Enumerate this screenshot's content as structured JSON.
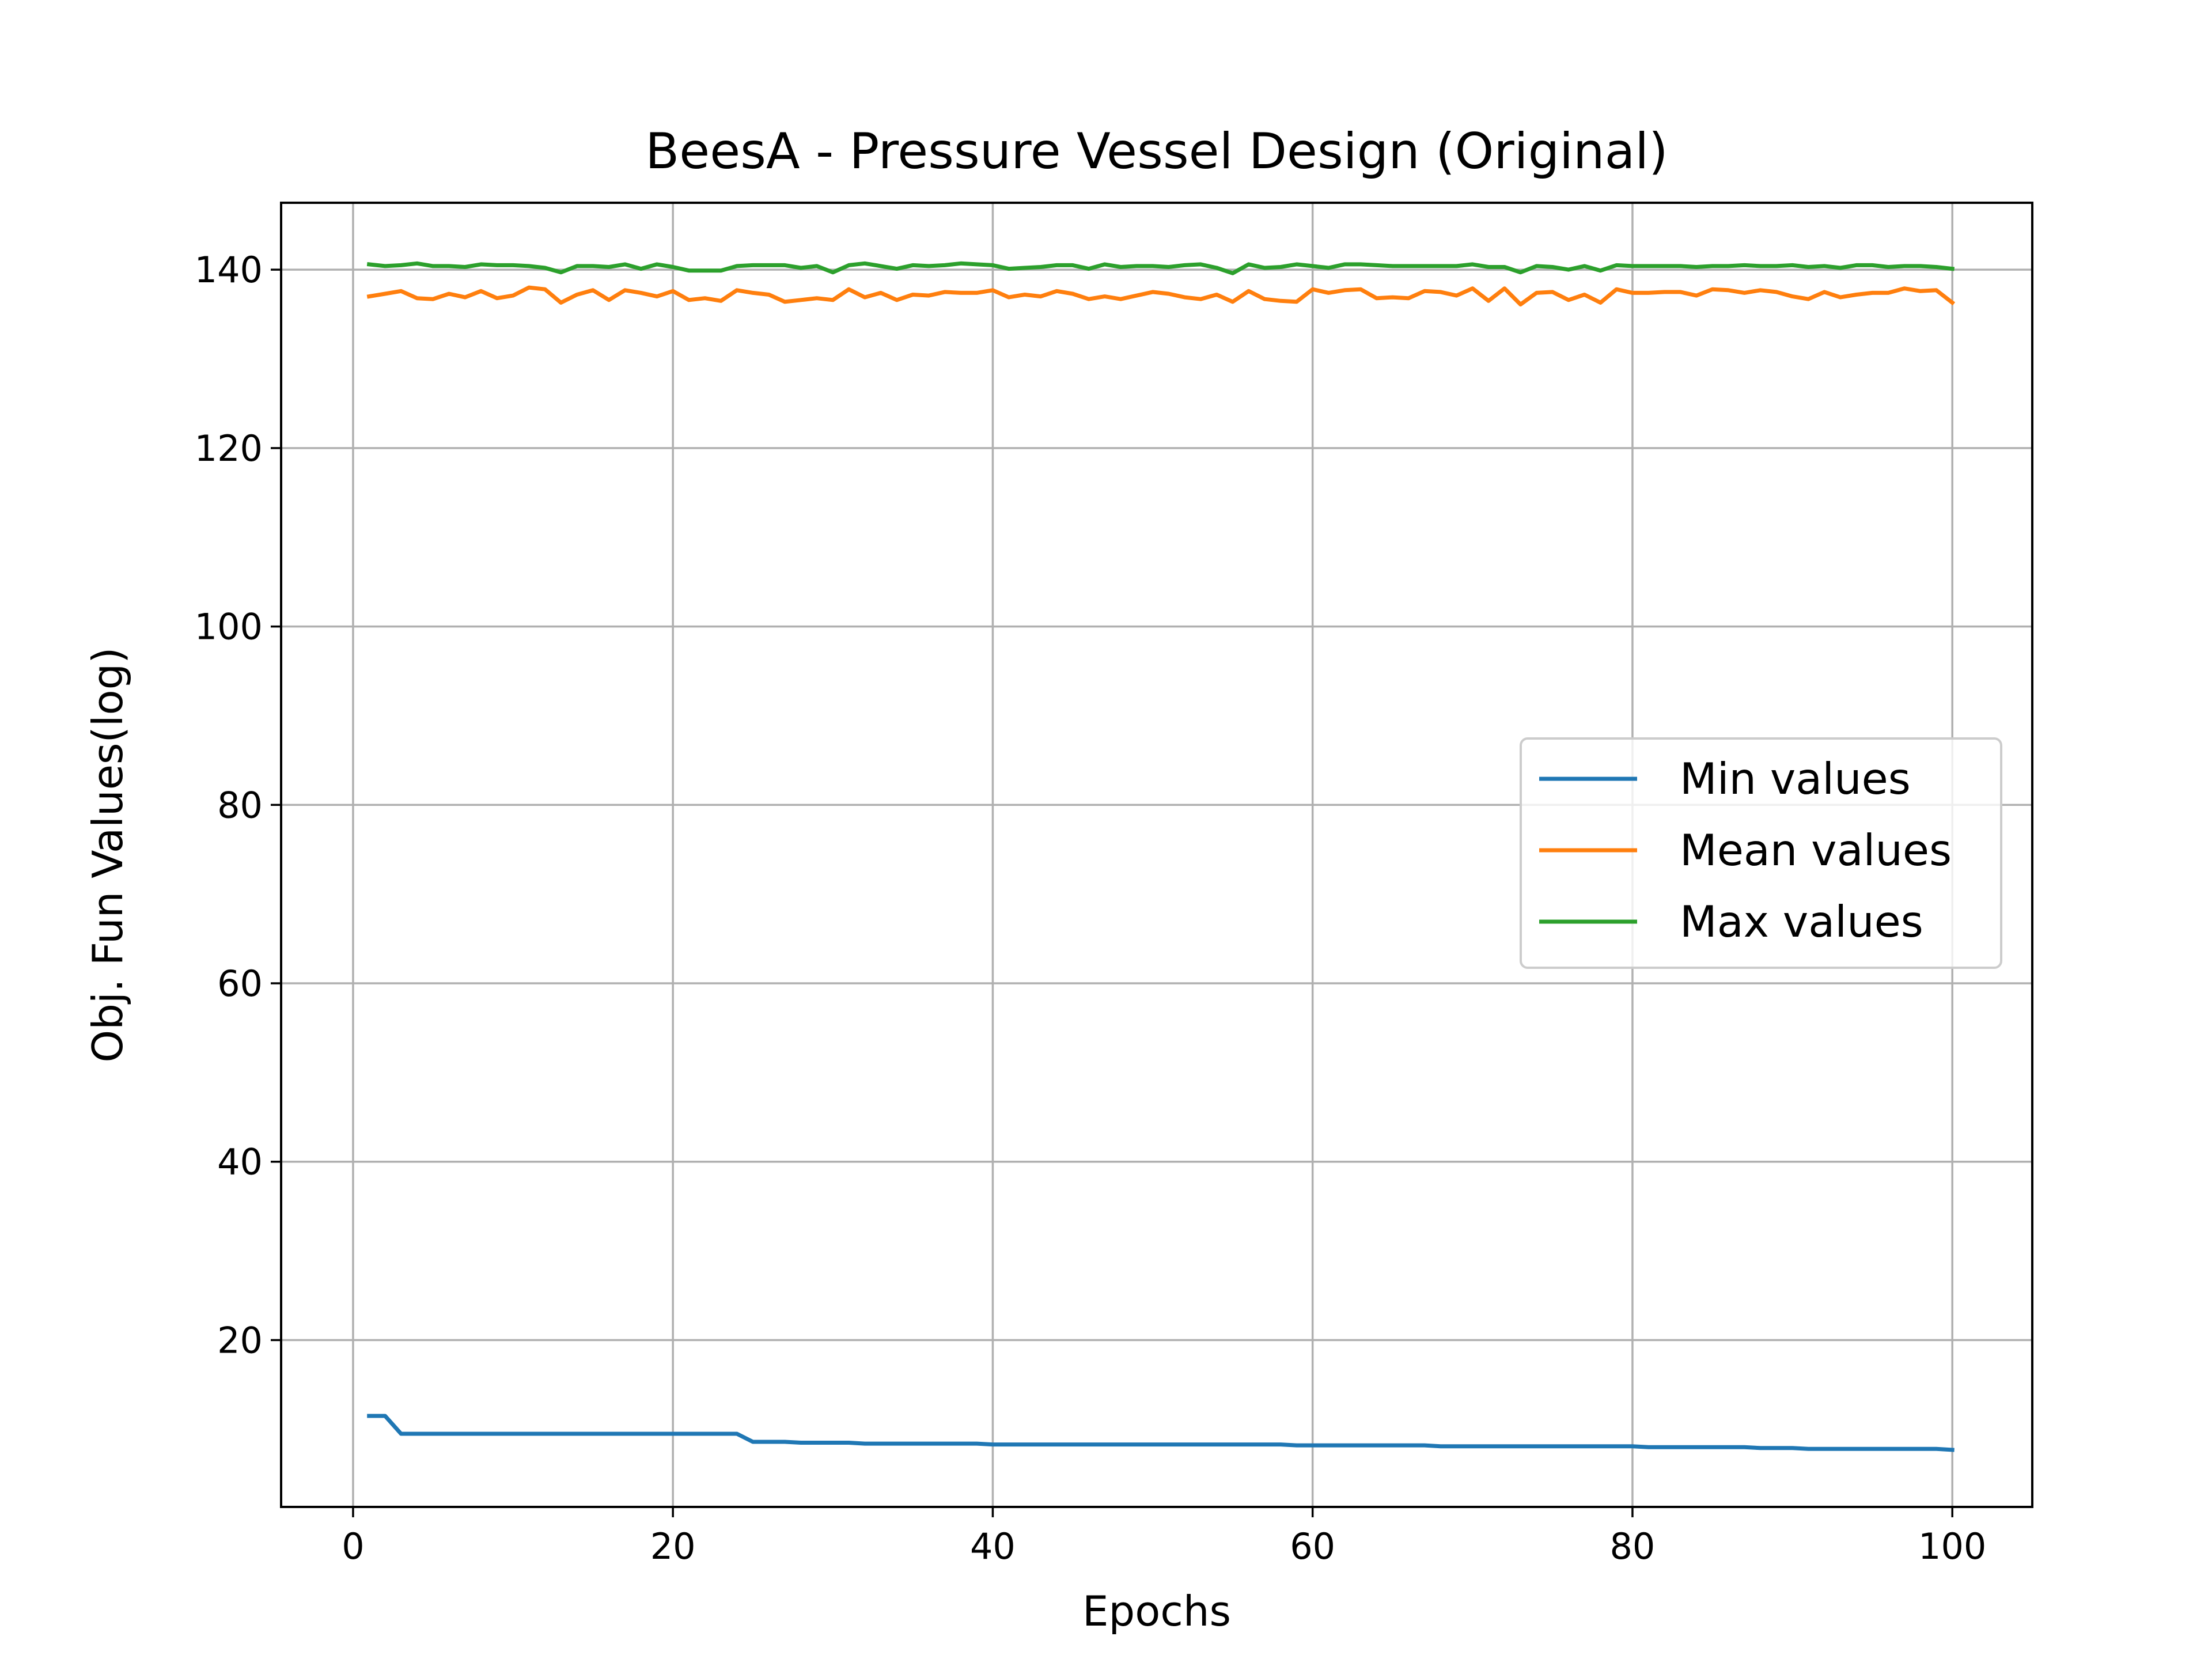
{
  "chart_data": {
    "type": "line",
    "title": "BeesA - Pressure Vessel Design (Original)",
    "xlabel": "Epochs",
    "ylabel": "Obj. Fun Values(log)",
    "xlim": [
      -4.5,
      105
    ],
    "ylim": [
      1.3,
      147.5
    ],
    "xticks": [
      0,
      20,
      40,
      60,
      80,
      100
    ],
    "yticks": [
      20,
      40,
      60,
      80,
      100,
      120,
      140
    ],
    "grid": true,
    "legend_position": "center-right",
    "x": [
      1,
      2,
      3,
      4,
      5,
      6,
      7,
      8,
      9,
      10,
      11,
      12,
      13,
      14,
      15,
      16,
      17,
      18,
      19,
      20,
      21,
      22,
      23,
      24,
      25,
      26,
      27,
      28,
      29,
      30,
      31,
      32,
      33,
      34,
      35,
      36,
      37,
      38,
      39,
      40,
      41,
      42,
      43,
      44,
      45,
      46,
      47,
      48,
      49,
      50,
      51,
      52,
      53,
      54,
      55,
      56,
      57,
      58,
      59,
      60,
      61,
      62,
      63,
      64,
      65,
      66,
      67,
      68,
      69,
      70,
      71,
      72,
      73,
      74,
      75,
      76,
      77,
      78,
      79,
      80,
      81,
      82,
      83,
      84,
      85,
      86,
      87,
      88,
      89,
      90,
      91,
      92,
      93,
      94,
      95,
      96,
      97,
      98,
      99,
      100
    ],
    "series": [
      {
        "name": "Min values",
        "color": "#1f77b4",
        "values": [
          11.5,
          11.5,
          9.5,
          9.5,
          9.5,
          9.5,
          9.5,
          9.5,
          9.5,
          9.5,
          9.5,
          9.5,
          9.5,
          9.5,
          9.5,
          9.5,
          9.5,
          9.5,
          9.5,
          9.5,
          9.5,
          9.5,
          9.5,
          9.5,
          8.6,
          8.6,
          8.6,
          8.5,
          8.5,
          8.5,
          8.5,
          8.4,
          8.4,
          8.4,
          8.4,
          8.4,
          8.4,
          8.4,
          8.4,
          8.3,
          8.3,
          8.3,
          8.3,
          8.3,
          8.3,
          8.3,
          8.3,
          8.3,
          8.3,
          8.3,
          8.3,
          8.3,
          8.3,
          8.3,
          8.3,
          8.3,
          8.3,
          8.3,
          8.2,
          8.2,
          8.2,
          8.2,
          8.2,
          8.2,
          8.2,
          8.2,
          8.2,
          8.1,
          8.1,
          8.1,
          8.1,
          8.1,
          8.1,
          8.1,
          8.1,
          8.1,
          8.1,
          8.1,
          8.1,
          8.1,
          8.0,
          8.0,
          8.0,
          8.0,
          8.0,
          8.0,
          8.0,
          7.9,
          7.9,
          7.9,
          7.8,
          7.8,
          7.8,
          7.8,
          7.8,
          7.8,
          7.8,
          7.8,
          7.8,
          7.7
        ]
      },
      {
        "name": "Mean values",
        "color": "#ff7f0e",
        "values": [
          137.0,
          137.3,
          137.6,
          136.8,
          136.7,
          137.3,
          136.9,
          137.6,
          136.8,
          137.1,
          138.0,
          137.8,
          136.3,
          137.2,
          137.7,
          136.6,
          137.7,
          137.4,
          137.0,
          137.6,
          136.6,
          136.8,
          136.5,
          137.7,
          137.4,
          137.2,
          136.4,
          136.6,
          136.8,
          136.6,
          137.8,
          136.9,
          137.4,
          136.6,
          137.2,
          137.1,
          137.5,
          137.4,
          137.4,
          137.7,
          136.9,
          137.2,
          137.0,
          137.6,
          137.3,
          136.7,
          137.0,
          136.7,
          137.1,
          137.5,
          137.3,
          136.9,
          136.7,
          137.2,
          136.4,
          137.6,
          136.7,
          136.5,
          136.4,
          137.8,
          137.4,
          137.7,
          137.8,
          136.8,
          136.9,
          136.8,
          137.6,
          137.5,
          137.1,
          137.9,
          136.5,
          137.9,
          136.1,
          137.4,
          137.5,
          136.6,
          137.2,
          136.3,
          137.8,
          137.4,
          137.4,
          137.5,
          137.5,
          137.1,
          137.8,
          137.7,
          137.4,
          137.7,
          137.5,
          137.0,
          136.7,
          137.5,
          136.9,
          137.2,
          137.4,
          137.4,
          137.9,
          137.6,
          137.7,
          136.3
        ]
      },
      {
        "name": "Max values",
        "color": "#2ca02c",
        "values": [
          140.6,
          140.4,
          140.5,
          140.7,
          140.4,
          140.4,
          140.3,
          140.6,
          140.5,
          140.5,
          140.4,
          140.2,
          139.7,
          140.4,
          140.4,
          140.3,
          140.6,
          140.1,
          140.6,
          140.3,
          139.9,
          139.9,
          139.9,
          140.4,
          140.5,
          140.5,
          140.5,
          140.2,
          140.4,
          139.7,
          140.5,
          140.7,
          140.4,
          140.1,
          140.5,
          140.4,
          140.5,
          140.7,
          140.6,
          140.5,
          140.1,
          140.2,
          140.3,
          140.5,
          140.5,
          140.1,
          140.6,
          140.3,
          140.4,
          140.4,
          140.3,
          140.5,
          140.6,
          140.2,
          139.6,
          140.6,
          140.2,
          140.3,
          140.6,
          140.4,
          140.2,
          140.6,
          140.6,
          140.5,
          140.4,
          140.4,
          140.4,
          140.4,
          140.4,
          140.6,
          140.3,
          140.3,
          139.7,
          140.4,
          140.3,
          140.0,
          140.4,
          139.9,
          140.5,
          140.4,
          140.4,
          140.4,
          140.4,
          140.3,
          140.4,
          140.4,
          140.5,
          140.4,
          140.4,
          140.5,
          140.3,
          140.4,
          140.2,
          140.5,
          140.5,
          140.3,
          140.4,
          140.4,
          140.3,
          140.1
        ]
      }
    ]
  }
}
